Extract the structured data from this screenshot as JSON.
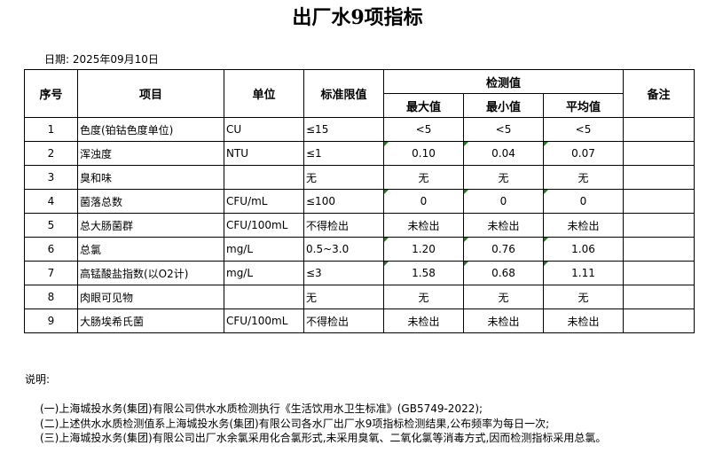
{
  "title": "出厂水9项指标",
  "date": "日期: 2025年09月10日",
  "headers": {
    "no": "序号",
    "item": "项目",
    "unit": "单位",
    "limit": "标准限值",
    "measured": "检测值",
    "max": "最大值",
    "min": "最小值",
    "avg": "平均值",
    "remark": "备注"
  },
  "rows": [
    {
      "no": "1",
      "item": "色度(铂钴色度单位)",
      "unit": "CU",
      "limit": "≤15",
      "max": "<5",
      "min": "<5",
      "avg": "<5",
      "flag": false
    },
    {
      "no": "2",
      "item": "浑浊度",
      "unit": "NTU",
      "limit": "≤1",
      "max": "0.10",
      "min": "0.04",
      "avg": "0.07",
      "flag": true
    },
    {
      "no": "3",
      "item": "臭和味",
      "unit": "",
      "limit": "无",
      "max": "无",
      "min": "无",
      "avg": "无",
      "flag": false
    },
    {
      "no": "4",
      "item": "菌落总数",
      "unit": "CFU/mL",
      "limit": "≤100",
      "max": "0",
      "min": "0",
      "avg": "0",
      "flag": true
    },
    {
      "no": "5",
      "item": "总大肠菌群",
      "unit": "CFU/100mL",
      "limit": "不得检出",
      "max": "未检出",
      "min": "未检出",
      "avg": "未检出",
      "flag": false
    },
    {
      "no": "6",
      "item": "总氯",
      "unit": "mg/L",
      "limit": "0.5~3.0",
      "max": "1.20",
      "min": "0.76",
      "avg": "1.06",
      "flag": true
    },
    {
      "no": "7",
      "item": "高锰酸盐指数(以O2计)",
      "unit": "mg/L",
      "limit": "≤3",
      "max": "1.58",
      "min": "0.68",
      "avg": "1.11",
      "flag": true
    },
    {
      "no": "8",
      "item": "肉眼可见物",
      "unit": "",
      "limit": "无",
      "max": "无",
      "min": "无",
      "avg": "无",
      "flag": false
    },
    {
      "no": "9",
      "item": "大肠埃希氏菌",
      "unit": "CFU/100mL",
      "limit": "不得检出",
      "max": "未检出",
      "min": "未检出",
      "avg": "未检出",
      "flag": false
    }
  ],
  "notes": {
    "label": "说明:",
    "lines": [
      "(一)上海城投水务(集团)有限公司供水水质检测执行《生活饮用水卫生标准》(GB5749-2022);",
      "(二)上述供水水质检测值系上海城投水务(集团)有限公司各水厂出厂水9项指标检测结果,公布频率为每日一次;",
      "(三)上海城投水务(集团)有限公司出厂水余氯采用化合氯形式,未采用臭氧、二氧化氯等消毒方式,因而检测指标采用总氯。"
    ]
  },
  "colors": {
    "error_marker": "#1a7f1a"
  }
}
